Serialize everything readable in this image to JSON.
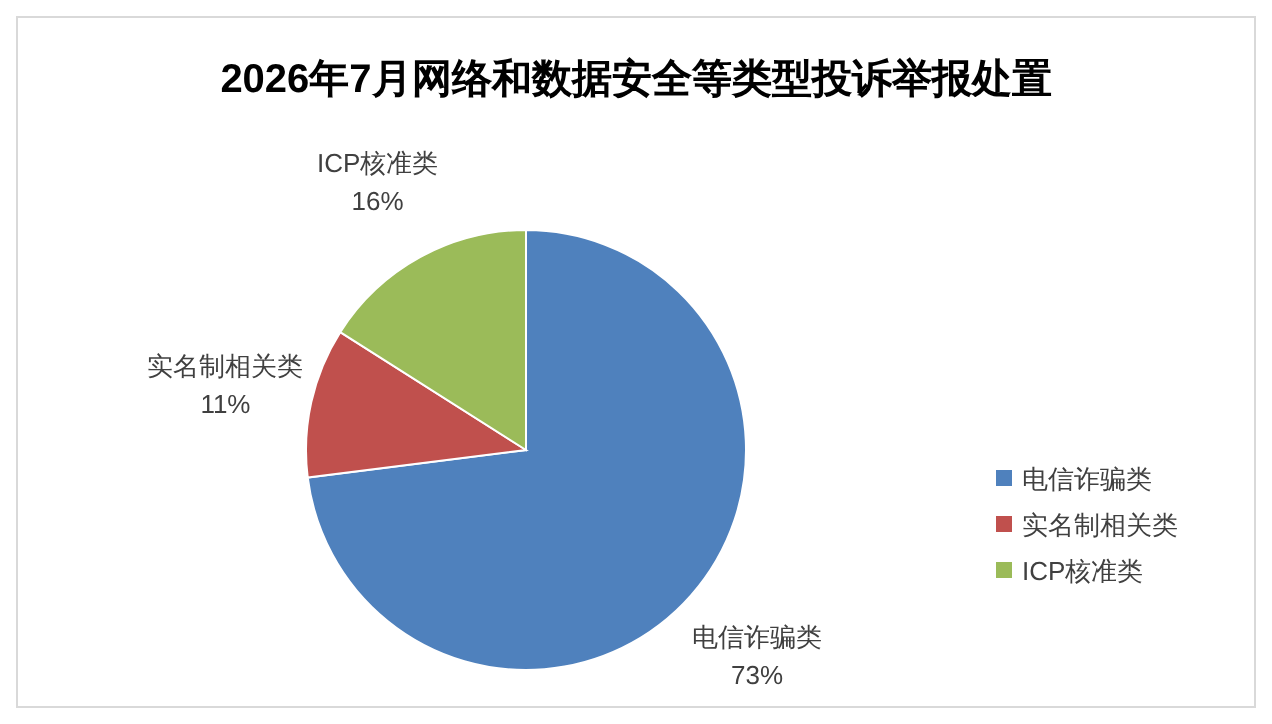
{
  "chart_data": {
    "type": "pie",
    "title": "2026年7月网络和数据安全等类型投诉举报处置",
    "categories": [
      "电信诈骗类",
      "实名制相关类",
      "ICP核准类"
    ],
    "values": [
      73,
      11,
      16
    ],
    "colors": [
      "#4f81bd",
      "#c0504d",
      "#9bbb59"
    ],
    "value_labels": [
      "73%",
      "11%",
      "16%"
    ],
    "legend": "right"
  }
}
